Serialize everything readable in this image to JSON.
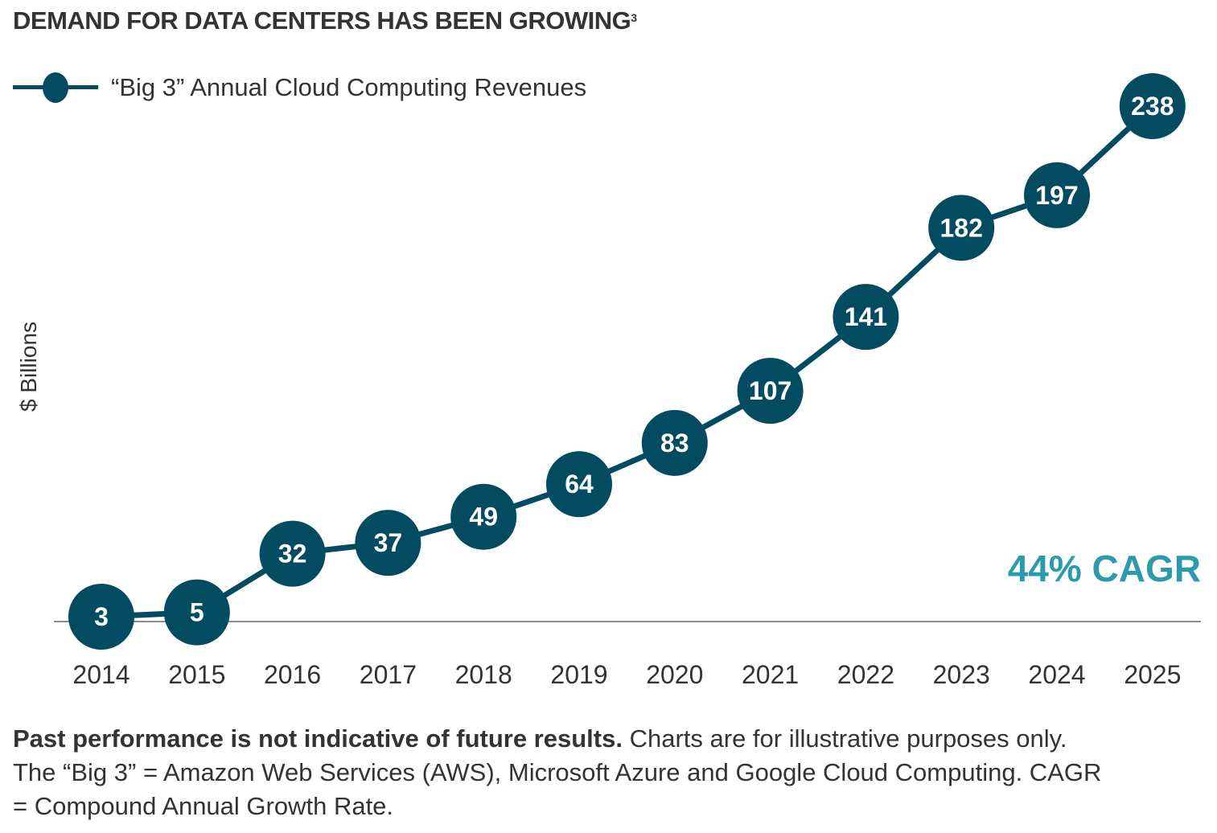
{
  "title": "DEMAND FOR DATA CENTERS HAS BEEN GROWING",
  "title_footnote_ref": "3",
  "legend": {
    "label": "“Big 3” Annual Cloud Computing Revenues",
    "icon": "line-with-circle-marker"
  },
  "annotation": "44% CAGR",
  "colors": {
    "series": "#024b60",
    "annotation": "#2b9aaa",
    "axis": "#8c8c8c",
    "text": "#333333",
    "label_text": "#ffffff"
  },
  "footnote": {
    "bold": "Past performance is not indicative of future results.",
    "text": " Charts are for illustrative purposes only. The “Big 3” = Amazon Web Services (AWS), Microsoft Azure and Google Cloud Computing. CAGR = Compound Annual Growth Rate."
  },
  "chart_data": {
    "type": "line",
    "title": "DEMAND FOR DATA CENTERS HAS BEEN GROWING",
    "xlabel": "",
    "ylabel": "$ Billions",
    "categories": [
      "2014",
      "2015",
      "2016",
      "2017",
      "2018",
      "2019",
      "2020",
      "2021",
      "2022",
      "2023",
      "2024",
      "2025"
    ],
    "series": [
      {
        "name": "“Big 3” Annual Cloud Computing Revenues",
        "values": [
          3,
          5,
          32,
          37,
          49,
          64,
          83,
          107,
          141,
          182,
          197,
          238
        ],
        "marker": "circle",
        "data_labels": true
      }
    ],
    "ylim": [
      0,
      240
    ],
    "grid": false,
    "legend_position": "top-left",
    "annotations": [
      "44% CAGR"
    ]
  }
}
